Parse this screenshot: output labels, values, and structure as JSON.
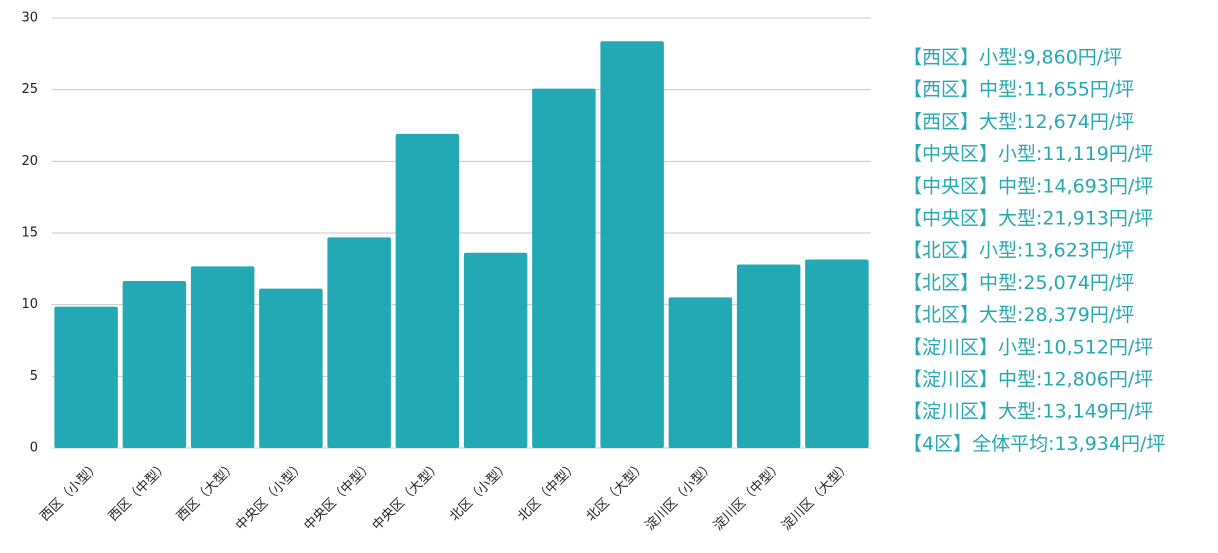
{
  "chart_data": {
    "type": "bar",
    "categories": [
      "西区（小型）",
      "西区（中型）",
      "西区（大型）",
      "中央区（小型）",
      "中央区（中型）",
      "中央区（大型）",
      "北区（小型）",
      "北区（中型）",
      "北区（大型）",
      "淀川区（小型）",
      "淀川区（中型）",
      "淀川区（大型）"
    ],
    "values": [
      9.86,
      11.655,
      12.674,
      11.119,
      14.693,
      21.913,
      13.623,
      25.074,
      28.379,
      10.512,
      12.806,
      13.149
    ],
    "color": "#23a9b3",
    "ylim": [
      0,
      30
    ],
    "yticks": [
      0,
      5,
      10,
      15,
      20,
      25,
      30
    ],
    "grid": true,
    "annotations": [
      "【西区】小型:9,860円/坪",
      "【西区】中型:11,655円/坪",
      "【西区】大型:12,674円/坪",
      "【中央区】小型:11,119円/坪",
      "【中央区】中型:14,693円/坪",
      "【中央区】大型:21,913円/坪",
      "【北区】小型:13,623円/坪",
      "【北区】中型:25,074円/坪",
      "【北区】大型:28,379円/坪",
      "【淀川区】小型:10,512円/坪",
      "【淀川区】中型:12,806円/坪",
      "【淀川区】大型:13,149円/坪",
      "【4区】全体平均:13,934円/坪"
    ]
  }
}
